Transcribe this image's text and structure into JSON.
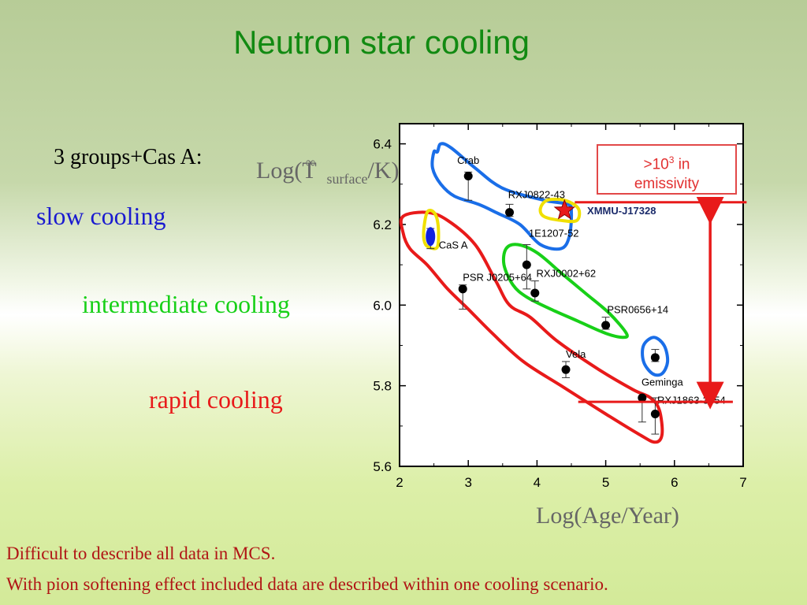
{
  "slide": {
    "title": "Neutron star cooling",
    "groups_label": "3 groups+Cas A:",
    "slow_label": "slow cooling",
    "intermediate_label": "intermediate cooling",
    "rapid_label": "rapid cooling",
    "footnote_1": "Difficult to describe all data in MCS.",
    "footnote_2": "With pion softening effect included data are described within one cooling scenario.",
    "callout_prefix": ">10",
    "callout_exp": "3",
    "callout_suffix": " in",
    "callout_line2": "emissivity"
  },
  "chart_data": {
    "type": "scatter",
    "ylabel_main": "Log(T",
    "ylabel_sup": "∞",
    "ylabel_sub": "surface",
    "ylabel_end": "/K)",
    "xlabel": "Log(Age/Year)",
    "xlim": [
      2,
      7
    ],
    "ylim": [
      5.6,
      6.45
    ],
    "xticks": [
      2,
      3,
      4,
      5,
      6,
      7
    ],
    "yticks": [
      5.6,
      5.8,
      6.0,
      6.2,
      6.4
    ],
    "ytick_labels": [
      "5.6",
      "5.8",
      "6.0",
      "6.2",
      "6.4"
    ],
    "points": [
      {
        "name": "Crab",
        "x": 3.0,
        "y": 6.32,
        "ylo": 6.26,
        "yhi": 6.33
      },
      {
        "name": "RXJ0822-43",
        "x": 3.6,
        "y": 6.23,
        "ylo": 6.22,
        "yhi": 6.25
      },
      {
        "name": "XMMU-J17328",
        "x": 4.4,
        "y": 6.235,
        "star": true
      },
      {
        "name": "1E1207-52",
        "x": 3.85,
        "y": 6.1,
        "ylo": 6.04,
        "yhi": 6.15
      },
      {
        "name": "RXJ0002+62",
        "x": 3.97,
        "y": 6.03,
        "ylo": 6.01,
        "yhi": 6.06
      },
      {
        "name": "PSR J0205+64",
        "x": 2.92,
        "y": 6.04,
        "ylo": 5.99,
        "yhi": 6.05
      },
      {
        "name": "PSR0656+14",
        "x": 5.0,
        "y": 5.95,
        "ylo": 5.94,
        "yhi": 5.97
      },
      {
        "name": "Vela",
        "x": 4.42,
        "y": 5.84,
        "ylo": 5.82,
        "yhi": 5.86
      },
      {
        "name": "Geminga",
        "x": 5.72,
        "y": 5.87,
        "ylo": 5.86,
        "yhi": 5.89
      },
      {
        "name": "RXJ1863-3754",
        "x": 5.53,
        "y": 5.77,
        "ylo": 5.71,
        "yhi": 5.77
      },
      {
        "name": "RXJ1863-3754-b",
        "x": 5.72,
        "y": 5.73,
        "ylo": 5.68,
        "yhi": 5.77
      },
      {
        "name": "CaS A",
        "x": 2.45,
        "y": 6.17,
        "ylo": 6.14,
        "yhi": 6.19
      }
    ],
    "annotations": [
      {
        "text": "Crab",
        "x": 3.0,
        "y": 6.35
      },
      {
        "text": "RXJ0822-43",
        "x": 3.58,
        "y": 6.265
      },
      {
        "text": "XMMU-J17328",
        "x": 4.73,
        "y": 6.225
      },
      {
        "text": "1E1207-52",
        "x": 3.88,
        "y": 6.17
      },
      {
        "text": "CaS A",
        "x": 2.57,
        "y": 6.14
      },
      {
        "text": "PSR J0205+64",
        "x": 2.92,
        "y": 6.06
      },
      {
        "text": "RXJ0002+62",
        "x": 3.99,
        "y": 6.07
      },
      {
        "text": "PSR0656+14",
        "x": 5.02,
        "y": 5.98
      },
      {
        "text": "Vela",
        "x": 4.42,
        "y": 5.87
      },
      {
        "text": "Geminga",
        "x": 5.52,
        "y": 5.8
      },
      {
        "text": "RXJ1863-3754",
        "x": 5.75,
        "y": 5.755
      }
    ],
    "regions": [
      {
        "name": "slow-cooling-region",
        "color": "#1a6ee8",
        "path": [
          [
            2.55,
            6.38
          ],
          [
            2.6,
            6.4
          ],
          [
            2.75,
            6.39
          ],
          [
            3.1,
            6.34
          ],
          [
            3.5,
            6.29
          ],
          [
            4.1,
            6.26
          ],
          [
            4.45,
            6.25
          ],
          [
            4.5,
            6.23
          ],
          [
            4.47,
            6.17
          ],
          [
            4.35,
            6.14
          ],
          [
            4.05,
            6.15
          ],
          [
            3.75,
            6.2
          ],
          [
            3.4,
            6.23
          ],
          [
            3.15,
            6.25
          ],
          [
            2.8,
            6.27
          ],
          [
            2.6,
            6.3
          ],
          [
            2.48,
            6.34
          ],
          [
            2.5,
            6.38
          ]
        ]
      },
      {
        "name": "intermediate-cooling-region",
        "color": "#18d018",
        "path": [
          [
            3.55,
            6.14
          ],
          [
            3.72,
            6.15
          ],
          [
            4.0,
            6.13
          ],
          [
            4.35,
            6.08
          ],
          [
            4.7,
            6.03
          ],
          [
            5.05,
            5.98
          ],
          [
            5.3,
            5.93
          ],
          [
            5.25,
            5.92
          ],
          [
            5.0,
            5.93
          ],
          [
            4.6,
            5.96
          ],
          [
            4.2,
            5.99
          ],
          [
            3.85,
            6.02
          ],
          [
            3.65,
            6.05
          ],
          [
            3.52,
            6.1
          ]
        ]
      },
      {
        "name": "rapid-cooling-region",
        "color": "#e81a1a",
        "path": [
          [
            2.05,
            6.22
          ],
          [
            2.4,
            6.23
          ],
          [
            2.7,
            6.21
          ],
          [
            3.1,
            6.15
          ],
          [
            3.4,
            6.06
          ],
          [
            3.6,
            6.0
          ],
          [
            3.9,
            5.97
          ],
          [
            4.3,
            5.91
          ],
          [
            4.9,
            5.84
          ],
          [
            5.4,
            5.79
          ],
          [
            5.65,
            5.77
          ],
          [
            5.78,
            5.74
          ],
          [
            5.82,
            5.68
          ],
          [
            5.72,
            5.66
          ],
          [
            5.48,
            5.68
          ],
          [
            5.0,
            5.73
          ],
          [
            4.35,
            5.8
          ],
          [
            3.8,
            5.86
          ],
          [
            3.35,
            5.93
          ],
          [
            3.0,
            5.99
          ],
          [
            2.7,
            6.04
          ],
          [
            2.4,
            6.1
          ],
          [
            2.15,
            6.14
          ],
          [
            2.05,
            6.18
          ]
        ]
      },
      {
        "name": "geminga-region",
        "color": "#1a6ee8",
        "path": [
          [
            5.55,
            5.9
          ],
          [
            5.7,
            5.92
          ],
          [
            5.85,
            5.9
          ],
          [
            5.9,
            5.86
          ],
          [
            5.82,
            5.83
          ],
          [
            5.68,
            5.83
          ],
          [
            5.55,
            5.86
          ]
        ]
      },
      {
        "name": "cas-a-region",
        "color": "#f0e000",
        "path": [
          [
            2.35,
            6.18
          ],
          [
            2.4,
            6.23
          ],
          [
            2.5,
            6.23
          ],
          [
            2.56,
            6.2
          ],
          [
            2.56,
            6.15
          ],
          [
            2.5,
            6.14
          ],
          [
            2.38,
            6.15
          ]
        ]
      },
      {
        "name": "xmmu-region",
        "color": "#f0e000",
        "path": [
          [
            4.05,
            6.24
          ],
          [
            4.15,
            6.26
          ],
          [
            4.4,
            6.26
          ],
          [
            4.6,
            6.24
          ],
          [
            4.58,
            6.21
          ],
          [
            4.35,
            6.21
          ],
          [
            4.1,
            6.22
          ]
        ]
      }
    ],
    "reference_lines": [
      {
        "name": "upper-red-line",
        "y": 6.255,
        "x0": 4.55,
        "x1": 7.05
      },
      {
        "name": "lower-red-line",
        "y": 5.76,
        "x0": 4.6,
        "x1": 6.85
      }
    ],
    "arrow": {
      "x": 6.52,
      "y0": 6.25,
      "y1": 5.76
    },
    "colors": {
      "marker": "#000000",
      "star": "#e81a1a",
      "callout_border": "#e24848"
    }
  }
}
